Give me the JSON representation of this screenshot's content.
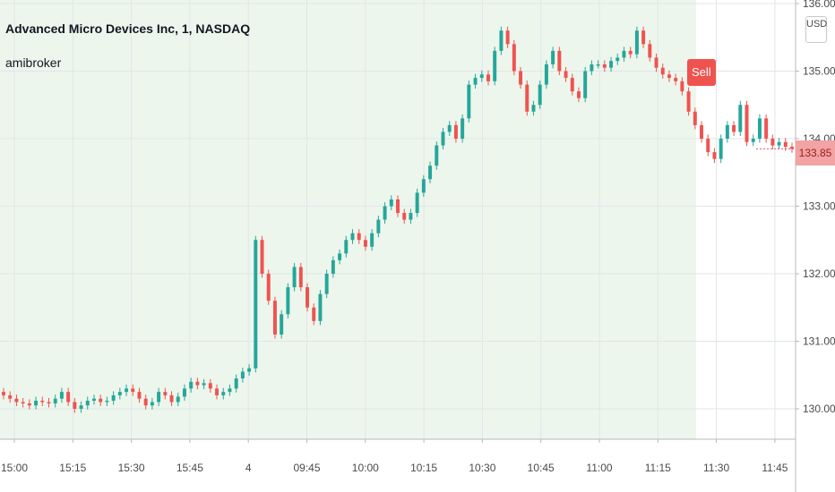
{
  "header": {
    "title": "Advanced Micro Devices Inc, 1, NASDAQ",
    "indicator": "amibroker"
  },
  "axis": {
    "currency": "USD",
    "last_price": "133.85"
  },
  "signal": {
    "label": "Sell"
  },
  "colors": {
    "up": "#26a69a",
    "down": "#ef5350",
    "session_shade": "#edf6ec",
    "grid": "#e0e6ea",
    "signal": "#ef5350",
    "last_price_tag": "#f2a3a3"
  },
  "chart_data": {
    "type": "candlestick",
    "title": "Advanced Micro Devices Inc, 1, NASDAQ",
    "ylim": [
      129.5,
      136.0
    ],
    "y_ticks": [
      "130.00",
      "131.00",
      "132.00",
      "133.00",
      "134.00",
      "135.00",
      "136.00"
    ],
    "x_ticks": [
      "15:00",
      "15:15",
      "15:30",
      "15:45",
      "4",
      "09:45",
      "10:00",
      "10:15",
      "10:30",
      "10:45",
      "11:00",
      "11:15",
      "11:30",
      "11:45"
    ],
    "highlight_until": "11:21",
    "sell_signal_at": "11:21",
    "last_price": 133.85,
    "close": [
      130.2,
      130.15,
      130.1,
      130.08,
      130.05,
      130.12,
      130.1,
      130.08,
      130.15,
      130.25,
      130.1,
      130.0,
      130.05,
      130.12,
      130.15,
      130.1,
      130.12,
      130.2,
      130.25,
      130.3,
      130.25,
      130.15,
      130.05,
      130.1,
      130.25,
      130.2,
      130.1,
      130.18,
      130.3,
      130.4,
      130.35,
      130.38,
      130.3,
      130.2,
      130.25,
      130.3,
      130.45,
      130.55,
      130.6,
      132.5,
      132.0,
      131.6,
      131.1,
      131.4,
      131.8,
      132.1,
      131.8,
      131.5,
      131.3,
      131.7,
      132.0,
      132.2,
      132.3,
      132.5,
      132.6,
      132.5,
      132.4,
      132.6,
      132.8,
      133.0,
      133.1,
      132.9,
      132.8,
      132.9,
      133.2,
      133.4,
      133.6,
      133.9,
      134.1,
      134.2,
      134.0,
      134.3,
      134.8,
      134.9,
      134.95,
      134.85,
      135.3,
      135.6,
      135.4,
      135.0,
      134.8,
      134.4,
      134.5,
      134.8,
      135.1,
      135.3,
      135.0,
      134.9,
      134.7,
      134.6,
      135.0,
      135.1,
      135.1,
      135.05,
      135.15,
      135.2,
      135.3,
      135.25,
      135.6,
      135.4,
      135.2,
      135.05,
      134.95,
      134.9,
      134.85,
      134.7,
      134.4,
      134.2,
      134.0,
      133.8,
      133.7,
      134.0,
      134.2,
      134.1,
      134.5,
      133.95,
      134.0,
      134.3,
      134.0,
      133.9,
      133.95,
      133.88,
      133.85
    ],
    "x_unit": "minutes from 15:00, including after-hours gap"
  }
}
